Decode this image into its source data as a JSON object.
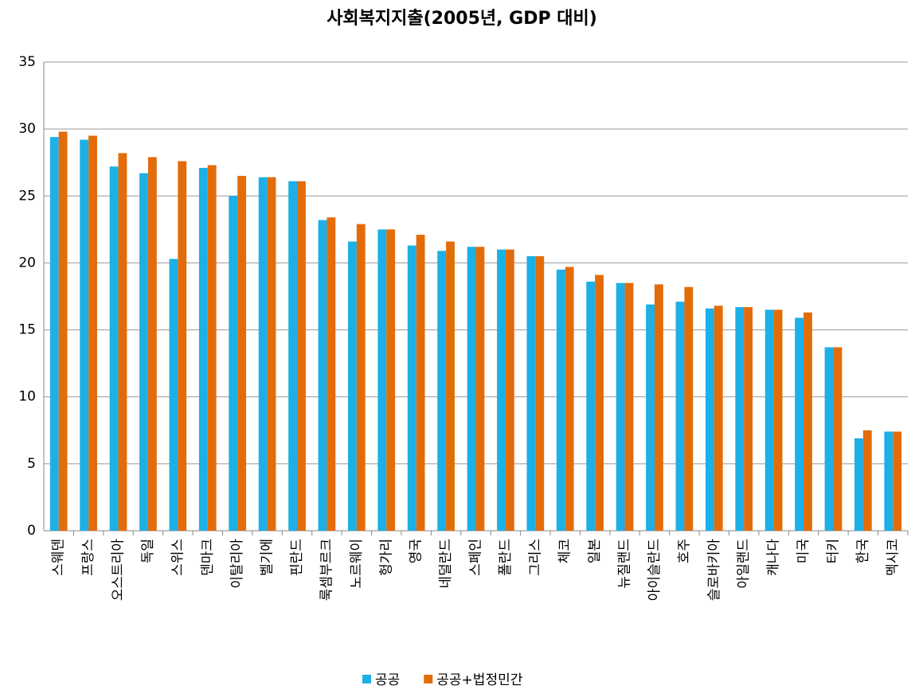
{
  "chart_data": {
    "type": "bar",
    "title": "사회복지지출(2005년, GDP 대비)",
    "categories": [
      "스웨덴",
      "프랑스",
      "오스트리아",
      "독일",
      "스위스",
      "덴마크",
      "이탈리아",
      "벨기에",
      "핀란드",
      "룩셈부르크",
      "노르웨이",
      "헝가리",
      "영국",
      "네덜란드",
      "스페인",
      "폴란드",
      "그리스",
      "체코",
      "일본",
      "뉴질랜드",
      "아이슬란드",
      "호주",
      "슬로바키아",
      "아일랜드",
      "캐나다",
      "미국",
      "터키",
      "한국",
      "멕시코"
    ],
    "series": [
      {
        "name": "공공",
        "color": "#1cb0e6",
        "values": [
          29.4,
          29.2,
          27.2,
          26.7,
          20.3,
          27.1,
          25.0,
          26.4,
          26.1,
          23.2,
          21.6,
          22.5,
          21.3,
          20.9,
          21.2,
          21.0,
          20.5,
          19.5,
          18.6,
          18.5,
          16.9,
          17.1,
          16.6,
          16.7,
          16.5,
          15.9,
          13.7,
          6.9,
          7.4
        ]
      },
      {
        "name": "공공+법정민간",
        "color": "#e36c0a",
        "values": [
          29.8,
          29.5,
          28.2,
          27.9,
          27.6,
          27.3,
          26.5,
          26.4,
          26.1,
          23.4,
          22.9,
          22.5,
          22.1,
          21.6,
          21.2,
          21.0,
          20.5,
          19.7,
          19.1,
          18.5,
          18.4,
          18.2,
          16.8,
          16.7,
          16.5,
          16.3,
          13.7,
          7.5,
          7.4
        ]
      }
    ],
    "ylim": [
      0,
      35
    ],
    "yticks": [
      0,
      5,
      10,
      15,
      20,
      25,
      30,
      35
    ],
    "grid": true,
    "legend": "bottom"
  }
}
